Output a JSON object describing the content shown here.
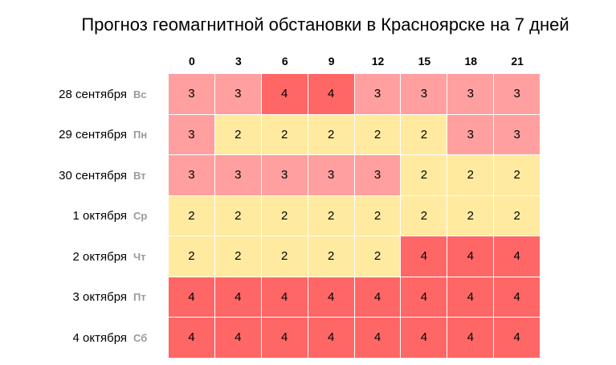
{
  "chart_data": {
    "type": "heatmap",
    "title": "Прогноз геомагнитной обстановки в Красноярске на 7 дней",
    "columns": [
      "0",
      "3",
      "6",
      "9",
      "12",
      "15",
      "18",
      "21"
    ],
    "rows": [
      {
        "date": "28 сентября",
        "dow": "Вс",
        "values": [
          3,
          3,
          4,
          4,
          3,
          3,
          3,
          3
        ]
      },
      {
        "date": "29 сентября",
        "dow": "Пн",
        "values": [
          3,
          2,
          2,
          2,
          2,
          2,
          3,
          3
        ]
      },
      {
        "date": "30 сентября",
        "dow": "Вт",
        "values": [
          3,
          3,
          3,
          3,
          3,
          2,
          2,
          2
        ]
      },
      {
        "date": "1 октября",
        "dow": "Ср",
        "values": [
          2,
          2,
          2,
          2,
          2,
          2,
          2,
          2
        ]
      },
      {
        "date": "2 октября",
        "dow": "Чт",
        "values": [
          2,
          2,
          2,
          2,
          2,
          4,
          4,
          4
        ]
      },
      {
        "date": "3 октября",
        "dow": "Пт",
        "values": [
          4,
          4,
          4,
          4,
          4,
          4,
          4,
          4
        ]
      },
      {
        "date": "4 октября",
        "dow": "Сб",
        "values": [
          4,
          4,
          4,
          4,
          4,
          4,
          4,
          4
        ]
      }
    ],
    "colors": {
      "2": "#ffeaa0",
      "3": "#ff9f9f",
      "4": "#ff6666"
    }
  }
}
